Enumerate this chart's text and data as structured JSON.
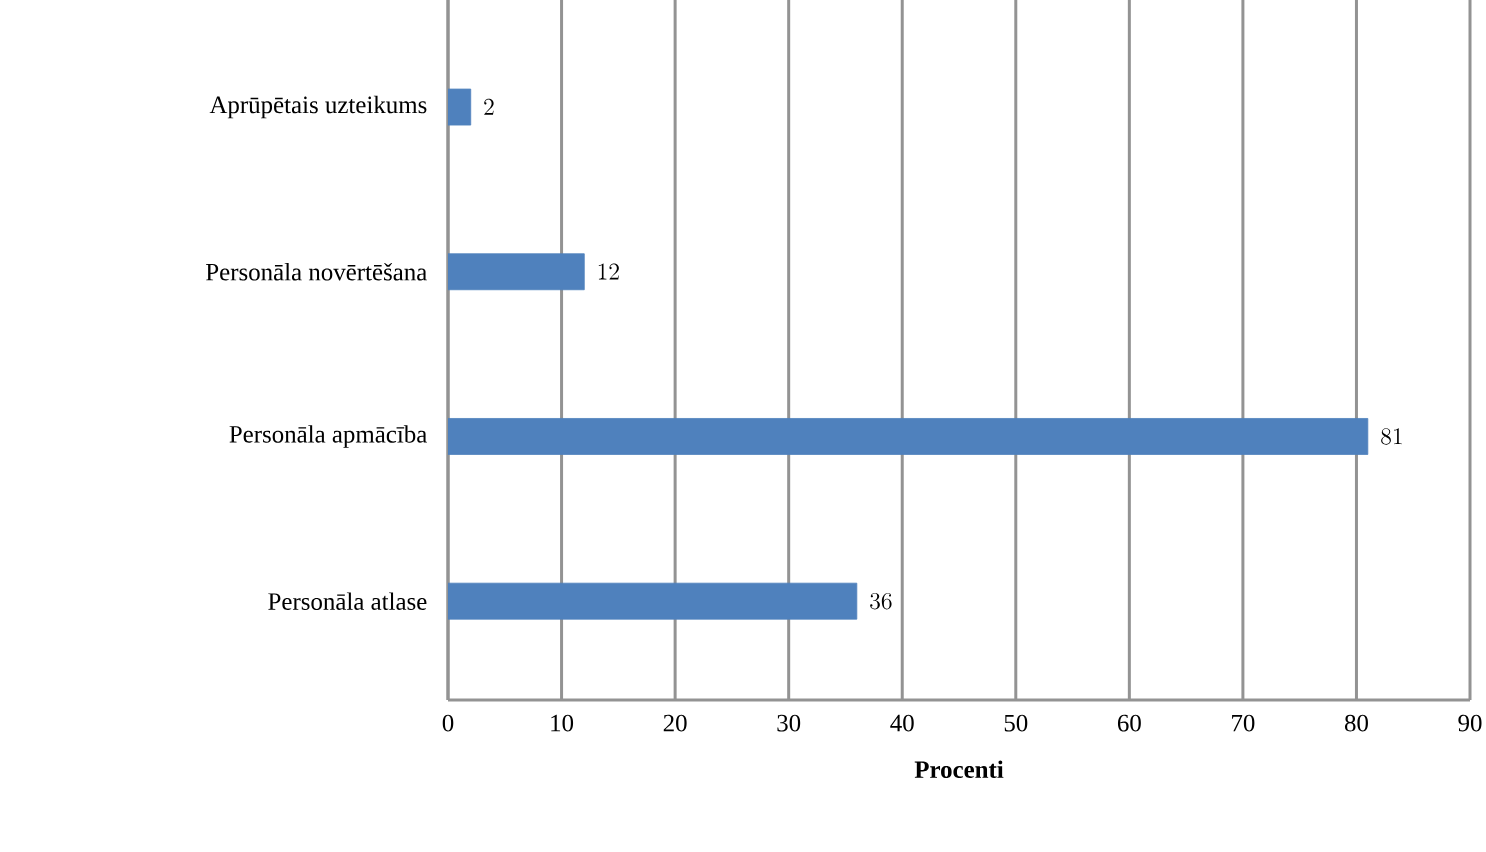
{
  "chart_data": {
    "type": "bar",
    "orientation": "horizontal",
    "xlabel": "Procenti",
    "categories": [
      "Aprūpētais uzteikums",
      "Personāla novērtēšana",
      "Personāla apmācība",
      "Personāla atlase"
    ],
    "values": [
      2,
      12,
      81,
      36
    ],
    "color": "#4f81bd",
    "xlim": [
      0,
      90
    ],
    "xticks": [
      0,
      10,
      20,
      30,
      40,
      50,
      60,
      70,
      80,
      90
    ],
    "grid": "x",
    "data_labels": true
  }
}
